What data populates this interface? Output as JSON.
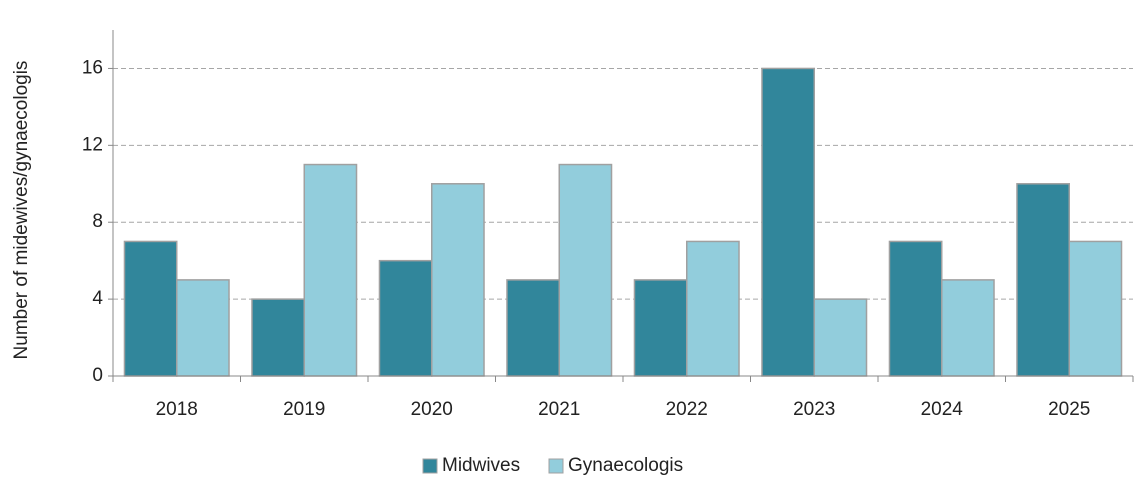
{
  "chart_data": {
    "type": "bar",
    "y_label": "Number of midewives/gynaecologis",
    "categories": [
      "2018",
      "2019",
      "2020",
      "2021",
      "2022",
      "2023",
      "2024",
      "2025"
    ],
    "series": [
      {
        "name": "Midwives",
        "color": "#31869b",
        "values": [
          7,
          4,
          6,
          5,
          5,
          16,
          7,
          10
        ]
      },
      {
        "name": "Gynaecologis",
        "color": "#92cddc",
        "values": [
          5,
          11,
          10,
          11,
          7,
          4,
          5,
          7
        ]
      }
    ],
    "ylim": [
      0,
      18
    ],
    "yticks": [
      0,
      4,
      8,
      12,
      16
    ],
    "grid": true,
    "legend": "bottom"
  }
}
